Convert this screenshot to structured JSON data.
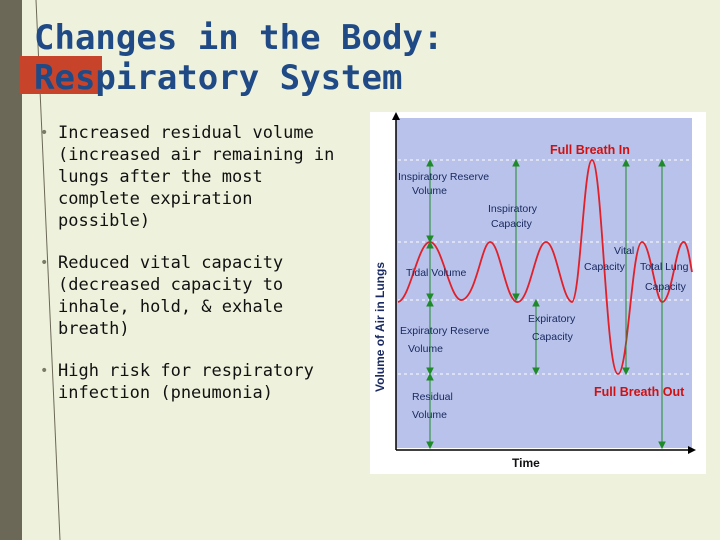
{
  "slide": {
    "title_line1": "Changes in the Body:",
    "title_line2": "Respiratory System",
    "bullets": [
      "Increased residual volume (increased air remaining in lungs after the most complete expiration possible)",
      "Reduced vital capacity (decreased capacity to inhale, hold, & exhale breath)",
      "High risk for respiratory infection (pneumonia)"
    ]
  },
  "diagram": {
    "y_axis_label": "Volume of Air in Lungs",
    "x_axis_label": "Time",
    "labels": {
      "full_breath_in": "Full Breath In",
      "full_breath_out": "Full Breath Out",
      "inspiratory_reserve_1": "Inspiratory Reserve",
      "inspiratory_reserve_2": "Volume",
      "inspiratory_capacity_1": "Inspiratory",
      "inspiratory_capacity_2": "Capacity",
      "tidal_volume": "Tidal Volume",
      "vital_capacity_1": "Vital",
      "vital_capacity_2": "Capacity",
      "total_lung_capacity_1": "Total Lung",
      "total_lung_capacity_2": "Capacity",
      "expiratory_reserve_1": "Expiratory Reserve",
      "expiratory_reserve_2": "Volume",
      "expiratory_capacity_1": "Expiratory",
      "expiratory_capacity_2": "Capacity",
      "residual_volume_1": "Residual",
      "residual_volume_2": "Volume"
    },
    "colors": {
      "curve": "#e0202a",
      "arrows": "#1f8a2a",
      "plot_bg": "#b9c2ea",
      "label_text": "#1a2a60",
      "highlight_text": "#d01010"
    }
  }
}
